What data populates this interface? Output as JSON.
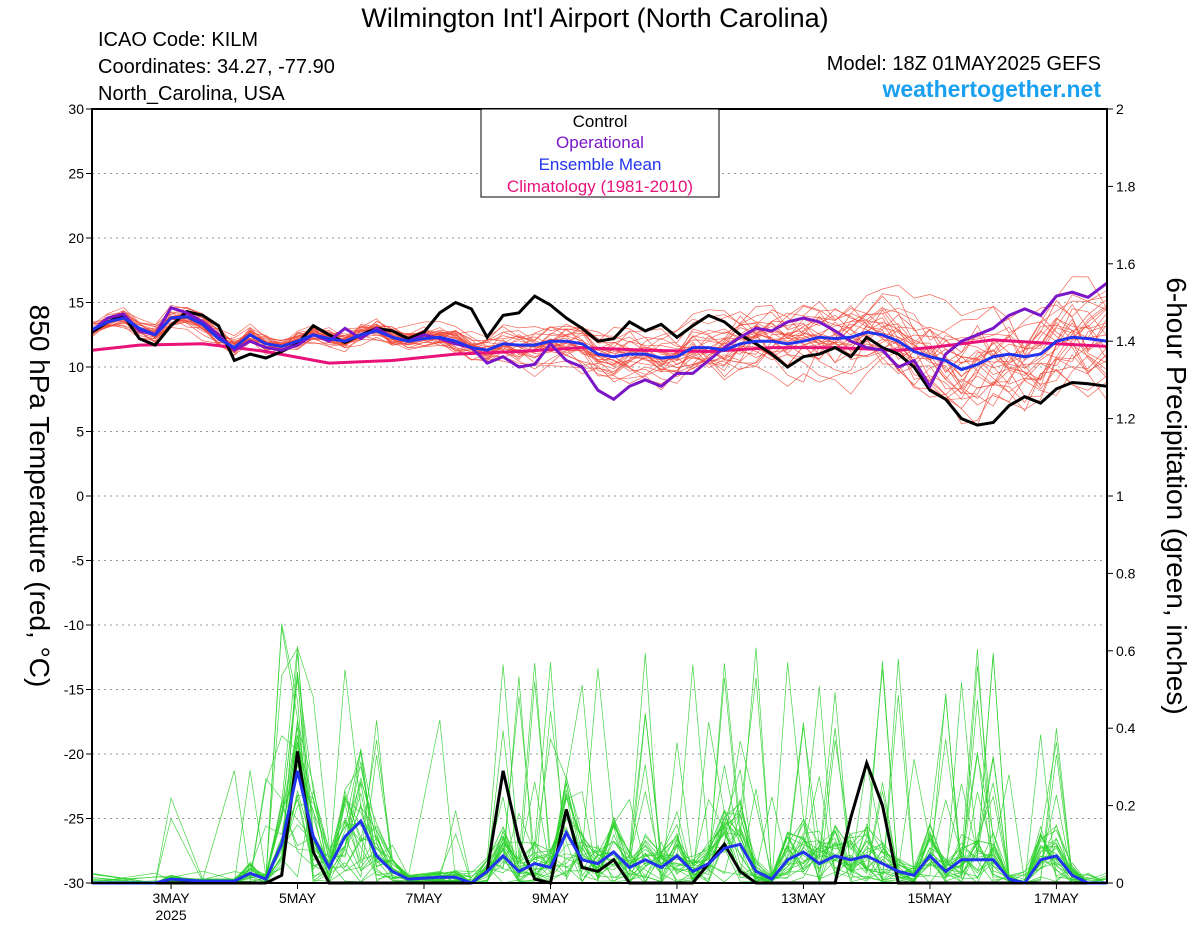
{
  "title": "Wilmington Int'l Airport (North Carolina)",
  "station": {
    "icao": "ICAO Code: KILM",
    "coords": "Coordinates: 34.27, -77.90",
    "region": "North_Carolina, USA"
  },
  "model": "Model: 18Z 01MAY2025 GEFS",
  "site": "weathertogether.net",
  "colors": {
    "member_temp": "#f04a3a",
    "member_precip": "#2fd22f",
    "control": "#000000",
    "operational": "#7a16c8",
    "mean": "#2233ee",
    "climatology": "#e8127a",
    "site": "#1aa0f0"
  },
  "chart_data": {
    "type": "line",
    "ylabel_left": "850 hPa Temperature (red, °C)",
    "ylabel_right": "6-hour Precipitation (green, inches)",
    "left_ticks": [
      "30",
      "25",
      "20",
      "15",
      "10",
      "5",
      "0",
      "-5",
      "-10",
      "-15",
      "-20",
      "-25",
      "-30"
    ],
    "right_ticks": [
      "2",
      "1.8",
      "1.6",
      "1.4",
      "1.2",
      "1",
      "0.8",
      "0.6",
      "0.4",
      "0.2",
      "0"
    ],
    "ylim_left": [
      -30,
      30
    ],
    "ylim_right": [
      0,
      2
    ],
    "xlim_days": [
      1.75,
      17.8
    ],
    "grid": "dotted horizontal",
    "x_ticks": [
      {
        "label": "3MAY",
        "sub": "2025",
        "day": 3
      },
      {
        "label": "5MAY",
        "sub": "",
        "day": 5
      },
      {
        "label": "7MAY",
        "sub": "",
        "day": 7
      },
      {
        "label": "9MAY",
        "sub": "",
        "day": 9
      },
      {
        "label": "11MAY",
        "sub": "",
        "day": 11
      },
      {
        "label": "13MAY",
        "sub": "",
        "day": 13
      },
      {
        "label": "15MAY",
        "sub": "",
        "day": 15
      },
      {
        "label": "17MAY",
        "sub": "",
        "day": 17
      }
    ],
    "legend": {
      "position": "top-center",
      "items": [
        {
          "label": "Control",
          "color": "#000000"
        },
        {
          "label": "Operational",
          "color": "#7a16c8"
        },
        {
          "label": "Ensemble Mean",
          "color": "#2233ee"
        },
        {
          "label": "Climatology (1981-2010)",
          "color": "#e8127a"
        }
      ]
    },
    "temperature": {
      "control": [
        [
          1.75,
          12.7
        ],
        [
          2,
          13.5
        ],
        [
          2.25,
          14.0
        ],
        [
          2.5,
          12.2
        ],
        [
          2.75,
          11.7
        ],
        [
          3,
          13.2
        ],
        [
          3.25,
          14.3
        ],
        [
          3.5,
          14.0
        ],
        [
          3.75,
          13.2
        ],
        [
          4,
          10.5
        ],
        [
          4.25,
          11.0
        ],
        [
          4.5,
          10.7
        ],
        [
          4.75,
          11.2
        ],
        [
          5,
          11.8
        ],
        [
          5.25,
          13.2
        ],
        [
          5.5,
          12.5
        ],
        [
          5.75,
          11.9
        ],
        [
          6,
          12.5
        ],
        [
          6.25,
          13.0
        ],
        [
          6.5,
          12.8
        ],
        [
          6.75,
          12.2
        ],
        [
          7,
          12.7
        ],
        [
          7.25,
          14.2
        ],
        [
          7.5,
          15.0
        ],
        [
          7.75,
          14.5
        ],
        [
          8,
          12.3
        ],
        [
          8.25,
          14.0
        ],
        [
          8.5,
          14.2
        ],
        [
          8.75,
          15.5
        ],
        [
          9,
          14.8
        ],
        [
          9.25,
          13.8
        ],
        [
          9.5,
          13.0
        ],
        [
          9.75,
          12.0
        ],
        [
          10,
          12.2
        ],
        [
          10.25,
          13.5
        ],
        [
          10.5,
          12.8
        ],
        [
          10.75,
          13.3
        ],
        [
          11,
          12.3
        ],
        [
          11.25,
          13.2
        ],
        [
          11.5,
          14.0
        ],
        [
          11.75,
          13.5
        ],
        [
          12,
          12.5
        ],
        [
          12.25,
          11.8
        ],
        [
          12.5,
          11.0
        ],
        [
          12.75,
          10.0
        ],
        [
          13,
          10.8
        ],
        [
          13.25,
          11.0
        ],
        [
          13.5,
          11.5
        ],
        [
          13.75,
          10.8
        ],
        [
          14,
          12.3
        ],
        [
          14.25,
          11.5
        ],
        [
          14.5,
          11.0
        ],
        [
          14.75,
          10.0
        ],
        [
          15,
          8.2
        ],
        [
          15.25,
          7.5
        ],
        [
          15.5,
          6.0
        ],
        [
          15.75,
          5.5
        ],
        [
          16,
          5.7
        ],
        [
          16.25,
          7.0
        ],
        [
          16.5,
          7.7
        ],
        [
          16.75,
          7.2
        ],
        [
          17,
          8.3
        ],
        [
          17.25,
          8.8
        ],
        [
          17.5,
          8.7
        ],
        [
          17.8,
          8.5
        ]
      ],
      "operational": [
        [
          1.75,
          12.8
        ],
        [
          2,
          13.8
        ],
        [
          2.25,
          14.1
        ],
        [
          2.5,
          12.8
        ],
        [
          2.75,
          12.5
        ],
        [
          3,
          14.6
        ],
        [
          3.25,
          14.2
        ],
        [
          3.5,
          13.5
        ],
        [
          3.75,
          12.5
        ],
        [
          4,
          11.3
        ],
        [
          4.25,
          12.0
        ],
        [
          4.5,
          11.5
        ],
        [
          4.75,
          11.3
        ],
        [
          5,
          11.7
        ],
        [
          5.25,
          12.5
        ],
        [
          5.5,
          12.0
        ],
        [
          5.75,
          13.0
        ],
        [
          6,
          12.2
        ],
        [
          6.25,
          13.0
        ],
        [
          6.5,
          12.3
        ],
        [
          6.75,
          12.0
        ],
        [
          7,
          12.5
        ],
        [
          7.25,
          12.2
        ],
        [
          7.5,
          11.8
        ],
        [
          7.75,
          11.5
        ],
        [
          8,
          10.3
        ],
        [
          8.25,
          10.8
        ],
        [
          8.5,
          10.0
        ],
        [
          8.75,
          10.2
        ],
        [
          9,
          11.8
        ],
        [
          9.25,
          10.5
        ],
        [
          9.5,
          10.0
        ],
        [
          9.75,
          8.2
        ],
        [
          10,
          7.5
        ],
        [
          10.25,
          8.5
        ],
        [
          10.5,
          9.0
        ],
        [
          10.75,
          8.5
        ],
        [
          11,
          9.5
        ],
        [
          11.25,
          9.5
        ],
        [
          11.5,
          10.5
        ],
        [
          11.75,
          11.5
        ],
        [
          12,
          12.3
        ],
        [
          12.25,
          13.0
        ],
        [
          12.5,
          12.8
        ],
        [
          12.75,
          13.5
        ],
        [
          13,
          13.8
        ],
        [
          13.25,
          13.5
        ],
        [
          13.5,
          12.8
        ],
        [
          13.75,
          12.0
        ],
        [
          14,
          11.5
        ],
        [
          14.25,
          11.3
        ],
        [
          14.5,
          10.0
        ],
        [
          14.75,
          10.5
        ],
        [
          15,
          8.5
        ],
        [
          15.25,
          11.0
        ],
        [
          15.5,
          12.0
        ],
        [
          15.75,
          12.5
        ],
        [
          16,
          13.0
        ],
        [
          16.25,
          14.0
        ],
        [
          16.5,
          14.5
        ],
        [
          16.75,
          14.0
        ],
        [
          17,
          15.5
        ],
        [
          17.25,
          15.8
        ],
        [
          17.5,
          15.4
        ],
        [
          17.8,
          16.5
        ]
      ],
      "mean": [
        [
          1.75,
          12.9
        ],
        [
          2,
          13.5
        ],
        [
          2.25,
          13.8
        ],
        [
          2.5,
          13.0
        ],
        [
          2.75,
          12.5
        ],
        [
          3,
          13.8
        ],
        [
          3.25,
          13.9
        ],
        [
          3.5,
          13.3
        ],
        [
          3.75,
          12.2
        ],
        [
          4,
          11.5
        ],
        [
          4.25,
          12.5
        ],
        [
          4.5,
          11.8
        ],
        [
          4.75,
          11.6
        ],
        [
          5,
          12.0
        ],
        [
          5.25,
          12.5
        ],
        [
          5.5,
          12.2
        ],
        [
          5.75,
          12.0
        ],
        [
          6,
          12.5
        ],
        [
          6.25,
          12.8
        ],
        [
          6.5,
          12.3
        ],
        [
          6.75,
          12.0
        ],
        [
          7,
          12.2
        ],
        [
          7.25,
          12.3
        ],
        [
          7.5,
          12.0
        ],
        [
          7.75,
          11.5
        ],
        [
          8,
          11.3
        ],
        [
          8.25,
          11.8
        ],
        [
          8.5,
          11.7
        ],
        [
          8.75,
          11.7
        ],
        [
          9,
          12.0
        ],
        [
          9.25,
          12.0
        ],
        [
          9.5,
          11.8
        ],
        [
          9.75,
          11.0
        ],
        [
          10,
          10.8
        ],
        [
          10.25,
          11.0
        ],
        [
          10.5,
          11.0
        ],
        [
          10.75,
          10.7
        ],
        [
          11,
          10.8
        ],
        [
          11.25,
          11.5
        ],
        [
          11.5,
          11.5
        ],
        [
          11.75,
          11.3
        ],
        [
          12,
          11.8
        ],
        [
          12.25,
          12.0
        ],
        [
          12.5,
          12.0
        ],
        [
          12.75,
          11.8
        ],
        [
          13,
          12.0
        ],
        [
          13.25,
          12.3
        ],
        [
          13.5,
          12.2
        ],
        [
          13.75,
          12.3
        ],
        [
          14,
          12.7
        ],
        [
          14.25,
          12.5
        ],
        [
          14.5,
          12.0
        ],
        [
          14.75,
          11.2
        ],
        [
          15,
          10.8
        ],
        [
          15.25,
          10.5
        ],
        [
          15.5,
          9.8
        ],
        [
          15.75,
          10.2
        ],
        [
          16,
          10.8
        ],
        [
          16.25,
          11.0
        ],
        [
          16.5,
          10.8
        ],
        [
          16.75,
          11.0
        ],
        [
          17,
          12.0
        ],
        [
          17.25,
          12.3
        ],
        [
          17.5,
          12.2
        ],
        [
          17.8,
          12.0
        ]
      ],
      "climatology": [
        [
          1.75,
          11.3
        ],
        [
          2.5,
          11.7
        ],
        [
          3.5,
          11.8
        ],
        [
          4.5,
          11.2
        ],
        [
          5.5,
          10.3
        ],
        [
          6.5,
          10.5
        ],
        [
          7.5,
          11.0
        ],
        [
          8.5,
          11.2
        ],
        [
          9.5,
          11.5
        ],
        [
          10.5,
          11.3
        ],
        [
          11.5,
          11.2
        ],
        [
          12.5,
          11.5
        ],
        [
          13.5,
          11.5
        ],
        [
          14.5,
          11.3
        ],
        [
          15,
          11.5
        ],
        [
          16,
          12.1
        ],
        [
          17,
          11.8
        ],
        [
          17.8,
          11.6
        ]
      ]
    },
    "precipitation": {
      "control": [
        [
          1.75,
          0
        ],
        [
          4.5,
          0
        ],
        [
          4.75,
          0.02
        ],
        [
          5,
          0.34
        ],
        [
          5.25,
          0.08
        ],
        [
          5.5,
          0
        ],
        [
          6,
          0
        ],
        [
          7,
          0
        ],
        [
          7.75,
          0
        ],
        [
          8,
          0.03
        ],
        [
          8.25,
          0.29
        ],
        [
          8.5,
          0.11
        ],
        [
          8.75,
          0.01
        ],
        [
          9,
          0
        ],
        [
          9.25,
          0.19
        ],
        [
          9.5,
          0.04
        ],
        [
          9.75,
          0.03
        ],
        [
          10,
          0.06
        ],
        [
          10.25,
          0
        ],
        [
          11.25,
          0
        ],
        [
          11.5,
          0.05
        ],
        [
          11.75,
          0.1
        ],
        [
          12,
          0.03
        ],
        [
          12.25,
          0
        ],
        [
          13.5,
          0
        ],
        [
          13.75,
          0.17
        ],
        [
          14,
          0.31
        ],
        [
          14.25,
          0.2
        ],
        [
          14.5,
          0
        ],
        [
          17.8,
          0
        ]
      ],
      "mean": [
        [
          1.75,
          0
        ],
        [
          2.75,
          0
        ],
        [
          3,
          0.01
        ],
        [
          3.5,
          0.005
        ],
        [
          4,
          0.005
        ],
        [
          4.25,
          0.025
        ],
        [
          4.5,
          0.01
        ],
        [
          4.75,
          0.1
        ],
        [
          5,
          0.29
        ],
        [
          5.25,
          0.12
        ],
        [
          5.5,
          0.04
        ],
        [
          5.75,
          0.12
        ],
        [
          6,
          0.16
        ],
        [
          6.25,
          0.07
        ],
        [
          6.5,
          0.03
        ],
        [
          6.75,
          0.01
        ],
        [
          7.25,
          0.015
        ],
        [
          7.5,
          0.015
        ],
        [
          7.75,
          0
        ],
        [
          8,
          0.03
        ],
        [
          8.25,
          0.07
        ],
        [
          8.5,
          0.03
        ],
        [
          8.75,
          0.05
        ],
        [
          9,
          0.04
        ],
        [
          9.25,
          0.13
        ],
        [
          9.5,
          0.06
        ],
        [
          9.75,
          0.05
        ],
        [
          10,
          0.08
        ],
        [
          10.25,
          0.04
        ],
        [
          10.5,
          0.06
        ],
        [
          10.75,
          0.04
        ],
        [
          11,
          0.07
        ],
        [
          11.25,
          0.03
        ],
        [
          11.5,
          0.05
        ],
        [
          11.75,
          0.09
        ],
        [
          12,
          0.1
        ],
        [
          12.25,
          0.03
        ],
        [
          12.5,
          0.01
        ],
        [
          12.75,
          0.06
        ],
        [
          13,
          0.08
        ],
        [
          13.25,
          0.05
        ],
        [
          13.5,
          0.07
        ],
        [
          13.75,
          0.06
        ],
        [
          14,
          0.07
        ],
        [
          14.25,
          0.05
        ],
        [
          14.5,
          0.03
        ],
        [
          14.75,
          0.02
        ],
        [
          15,
          0.07
        ],
        [
          15.25,
          0.03
        ],
        [
          15.5,
          0.06
        ],
        [
          15.75,
          0.06
        ],
        [
          16,
          0.06
        ],
        [
          16.25,
          0.01
        ],
        [
          16.5,
          0.0
        ],
        [
          16.75,
          0.06
        ],
        [
          17,
          0.07
        ],
        [
          17.25,
          0.02
        ],
        [
          17.5,
          0
        ],
        [
          17.8,
          0
        ]
      ]
    }
  }
}
